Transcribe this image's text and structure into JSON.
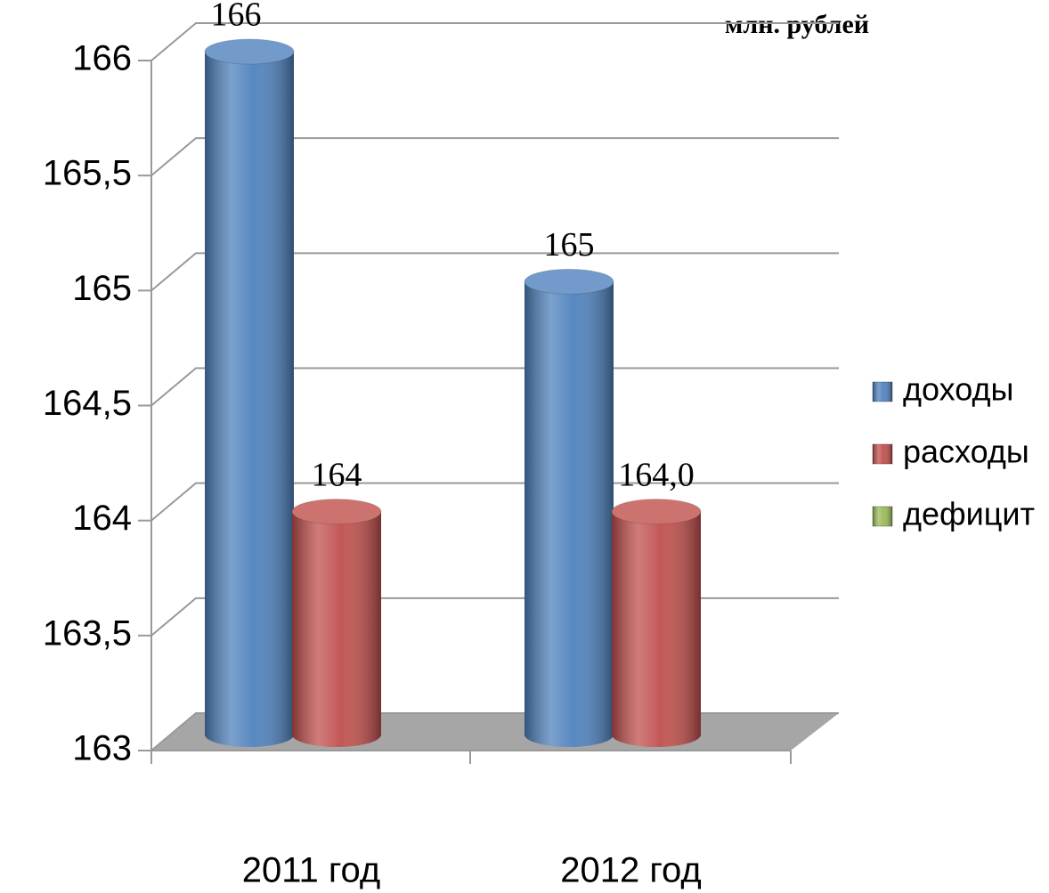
{
  "chart_data": {
    "type": "bar3d",
    "unit_label": "млн. рублей",
    "categories": [
      "2011 год",
      "2012 год"
    ],
    "series": [
      {
        "name": "доходы",
        "color": "#4f81bd",
        "values": [
          166,
          165
        ],
        "value_labels": [
          "166",
          "165"
        ]
      },
      {
        "name": "расходы",
        "color": "#c0504d",
        "values": [
          164,
          164.0
        ],
        "value_labels": [
          "164",
          "164,0"
        ]
      },
      {
        "name": "дефицит",
        "color": "#9bbb59",
        "values": [
          null,
          null
        ]
      }
    ],
    "ylim": [
      163,
      166
    ],
    "yticks": [
      163,
      {
        "value": 163.5,
        "label": "163,5"
      },
      164,
      {
        "value": 164.5,
        "label": "164,5"
      },
      165,
      {
        "value": 165.5,
        "label": "165,5"
      },
      166
    ],
    "grid": true,
    "legend": "right"
  }
}
